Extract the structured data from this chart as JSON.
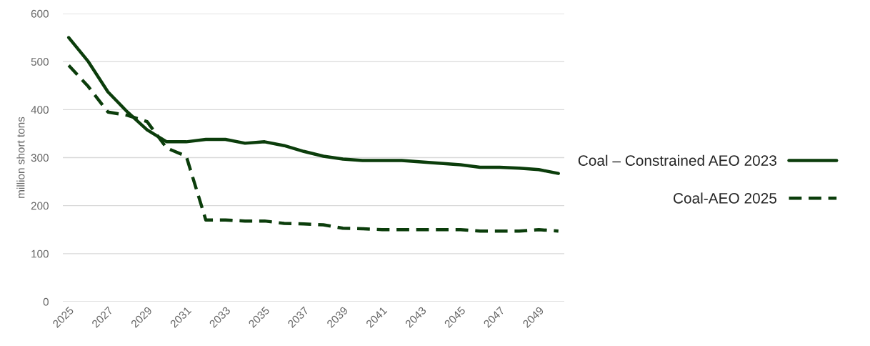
{
  "chart_data": {
    "type": "line",
    "ylabel": "million short tons",
    "categories": [
      "2025",
      null,
      "2027",
      null,
      "2029",
      null,
      "2031",
      null,
      "2033",
      null,
      "2035",
      null,
      "2037",
      null,
      "2039",
      null,
      "2041",
      null,
      "2043",
      null,
      "2045",
      null,
      "2047",
      null,
      "2049",
      null
    ],
    "series": [
      {
        "name": "Coal – Constrained AEO 2023",
        "color": "#0b3d0b",
        "line_style": "solid",
        "values": [
          550,
          500,
          437,
          395,
          358,
          333,
          333,
          338,
          338,
          330,
          333,
          325,
          313,
          303,
          297,
          294,
          294,
          294,
          291,
          288,
          285,
          280,
          280,
          278,
          275,
          267
        ]
      },
      {
        "name": "Coal-AEO 2025",
        "color": "#0b3d0b",
        "line_style": "dashed",
        "values": [
          492,
          448,
          395,
          388,
          375,
          320,
          303,
          170,
          170,
          168,
          168,
          163,
          162,
          160,
          153,
          152,
          150,
          150,
          150,
          150,
          150,
          147,
          147,
          147,
          150,
          147
        ]
      }
    ],
    "ylim": [
      0,
      600
    ],
    "yticks": [
      0,
      100,
      200,
      300,
      400,
      500,
      600
    ],
    "grid": "y",
    "legend": "right",
    "marker": "none"
  }
}
